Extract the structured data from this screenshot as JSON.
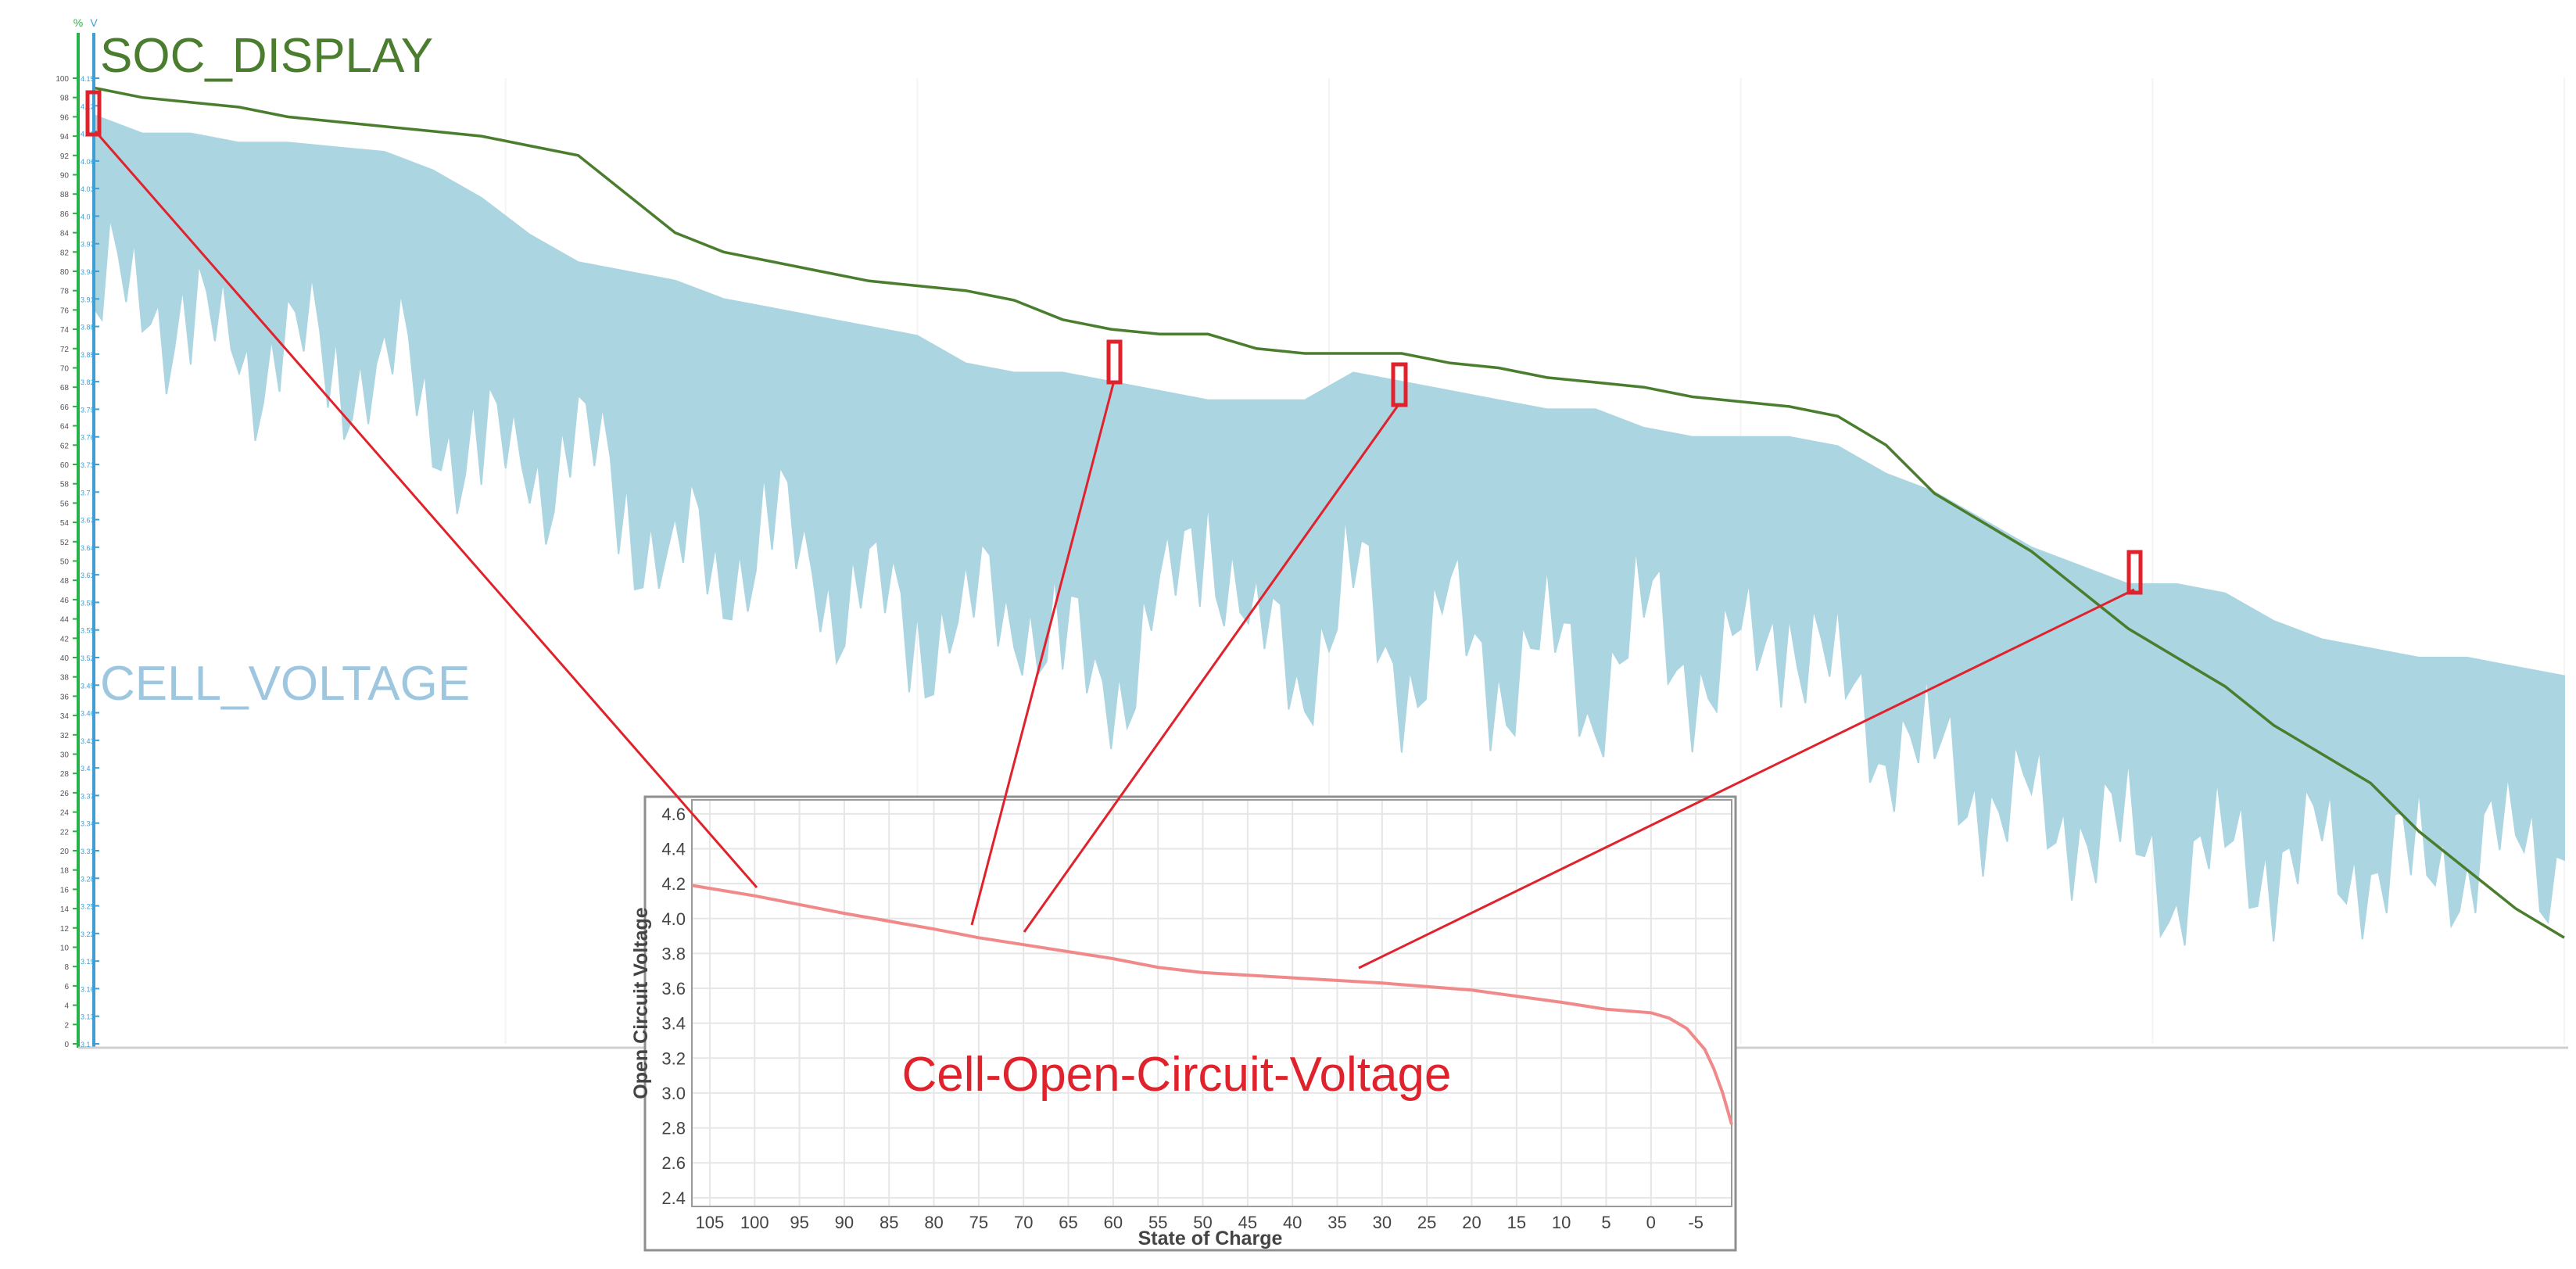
{
  "colors": {
    "soc": "#4a7d2e",
    "cell": "#acd5e2",
    "cell_label": "#9ec7df",
    "highlight": "#e0222c",
    "ocv_curve": "#f08a8a",
    "axis": "#29b14a",
    "axis_blue": "#3f9ed4",
    "grid": "#e6e6e6",
    "inset_border": "#8f8f8f",
    "text_dark": "#444444"
  },
  "labels": {
    "soc_display": "SOC_DISPLAY",
    "cell_voltage": "CELL_VOLTAGE",
    "ocv_title": "Cell-Open-Circuit-Voltage",
    "soc_axis_unit": "%",
    "voltage_axis_unit": "V"
  },
  "chart_data": [
    {
      "type": "area",
      "series": [
        {
          "name": "SOC_DISPLAY",
          "kind": "line",
          "y_axis": "percent",
          "values": [
            99,
            98,
            97.5,
            97,
            96,
            95.5,
            95,
            94.5,
            94,
            93,
            92,
            88,
            84,
            82,
            81,
            80,
            79,
            78.5,
            78,
            77,
            75,
            74,
            73.5,
            73.5,
            72,
            71.5,
            71.5,
            71.5,
            70.5,
            70,
            69,
            68.5,
            68,
            67,
            66.5,
            66,
            65,
            62,
            57,
            54,
            51,
            47,
            43,
            40,
            37,
            33,
            30,
            27,
            22,
            18,
            14,
            11
          ]
        },
        {
          "name": "CELL_VOLTAGE",
          "kind": "band",
          "y_axis": "voltage",
          "upper": [
            4.11,
            4.09,
            4.09,
            4.08,
            4.08,
            4.075,
            4.07,
            4.05,
            4.02,
            3.98,
            3.95,
            3.94,
            3.93,
            3.91,
            3.9,
            3.89,
            3.88,
            3.87,
            3.84,
            3.83,
            3.83,
            3.82,
            3.81,
            3.8,
            3.8,
            3.8,
            3.83,
            3.82,
            3.81,
            3.8,
            3.79,
            3.79,
            3.77,
            3.76,
            3.76,
            3.76,
            3.75,
            3.72,
            3.7,
            3.67,
            3.64,
            3.62,
            3.6,
            3.6,
            3.59,
            3.56,
            3.54,
            3.53,
            3.52,
            3.52,
            3.51,
            3.5
          ],
          "lower": [
            3.9,
            3.92,
            3.88,
            3.84,
            3.86,
            3.83,
            3.85,
            3.78,
            3.74,
            3.72,
            3.75,
            3.68,
            3.63,
            3.62,
            3.66,
            3.6,
            3.58,
            3.55,
            3.56,
            3.59,
            3.52,
            3.49,
            3.55,
            3.68,
            3.53,
            3.52,
            3.6,
            3.5,
            3.55,
            3.5,
            3.53,
            3.49,
            3.56,
            3.51,
            3.5,
            3.57,
            3.48,
            3.45,
            3.4,
            3.38,
            3.33,
            3.35,
            3.31,
            3.29,
            3.3,
            3.31,
            3.29,
            3.3,
            3.28,
            3.32,
            3.31,
            3.3
          ]
        }
      ],
      "y_axes": [
        {
          "name": "percent",
          "unit": "%",
          "range": [
            0,
            100
          ]
        },
        {
          "name": "voltage",
          "unit": "V",
          "range": [
            3.1,
            4.15
          ]
        }
      ],
      "title": "",
      "xlabel": "",
      "ylabel": ""
    },
    {
      "type": "line",
      "title": "Cell-Open-Circuit-Voltage",
      "xlabel": "State of Charge",
      "ylabel": "Open Circuit Voltage",
      "xlim": [
        107,
        -9
      ],
      "ylim": [
        2.35,
        4.68
      ],
      "x_ticks": [
        "105",
        "100",
        "95",
        "90",
        "85",
        "80",
        "75",
        "70",
        "65",
        "60",
        "55",
        "50",
        "45",
        "40",
        "35",
        "30",
        "25",
        "20",
        "15",
        "10",
        "5",
        "0",
        "-5"
      ],
      "y_ticks": [
        "2.4",
        "2.6",
        "2.8",
        "3.0",
        "3.2",
        "3.4",
        "3.6",
        "3.8",
        "4.0",
        "4.2",
        "4.4",
        "4.6"
      ],
      "grid": true,
      "series": [
        {
          "x": [
            107,
            100,
            90,
            80,
            75,
            70,
            60,
            55,
            50,
            40,
            30,
            20,
            10,
            5,
            0,
            -2,
            -4,
            -6,
            -7,
            -8,
            -9
          ],
          "y": [
            4.19,
            4.13,
            4.03,
            3.94,
            3.89,
            3.85,
            3.77,
            3.72,
            3.69,
            3.66,
            3.63,
            3.59,
            3.52,
            3.48,
            3.46,
            3.43,
            3.37,
            3.25,
            3.14,
            3.0,
            2.82
          ]
        }
      ]
    }
  ]
}
